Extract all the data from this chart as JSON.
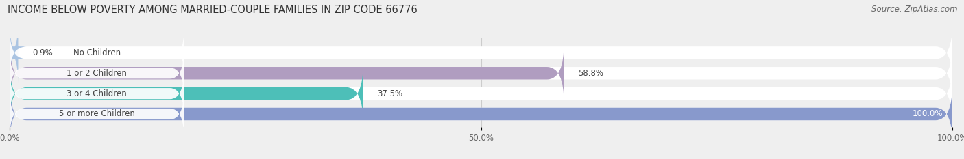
{
  "title": "INCOME BELOW POVERTY AMONG MARRIED-COUPLE FAMILIES IN ZIP CODE 66776",
  "source": "Source: ZipAtlas.com",
  "categories": [
    "No Children",
    "1 or 2 Children",
    "3 or 4 Children",
    "5 or more Children"
  ],
  "values": [
    0.9,
    58.8,
    37.5,
    100.0
  ],
  "bar_colors": [
    "#aac4e2",
    "#b09dc0",
    "#4dbfb8",
    "#8899cc"
  ],
  "bar_height": 0.62,
  "xlim": [
    0,
    100
  ],
  "xticks": [
    0.0,
    50.0,
    100.0
  ],
  "xticklabels": [
    "0.0%",
    "50.0%",
    "100.0%"
  ],
  "background_color": "#efefef",
  "title_fontsize": 10.5,
  "label_fontsize": 8.5,
  "value_fontsize": 8.5,
  "source_fontsize": 8.5
}
